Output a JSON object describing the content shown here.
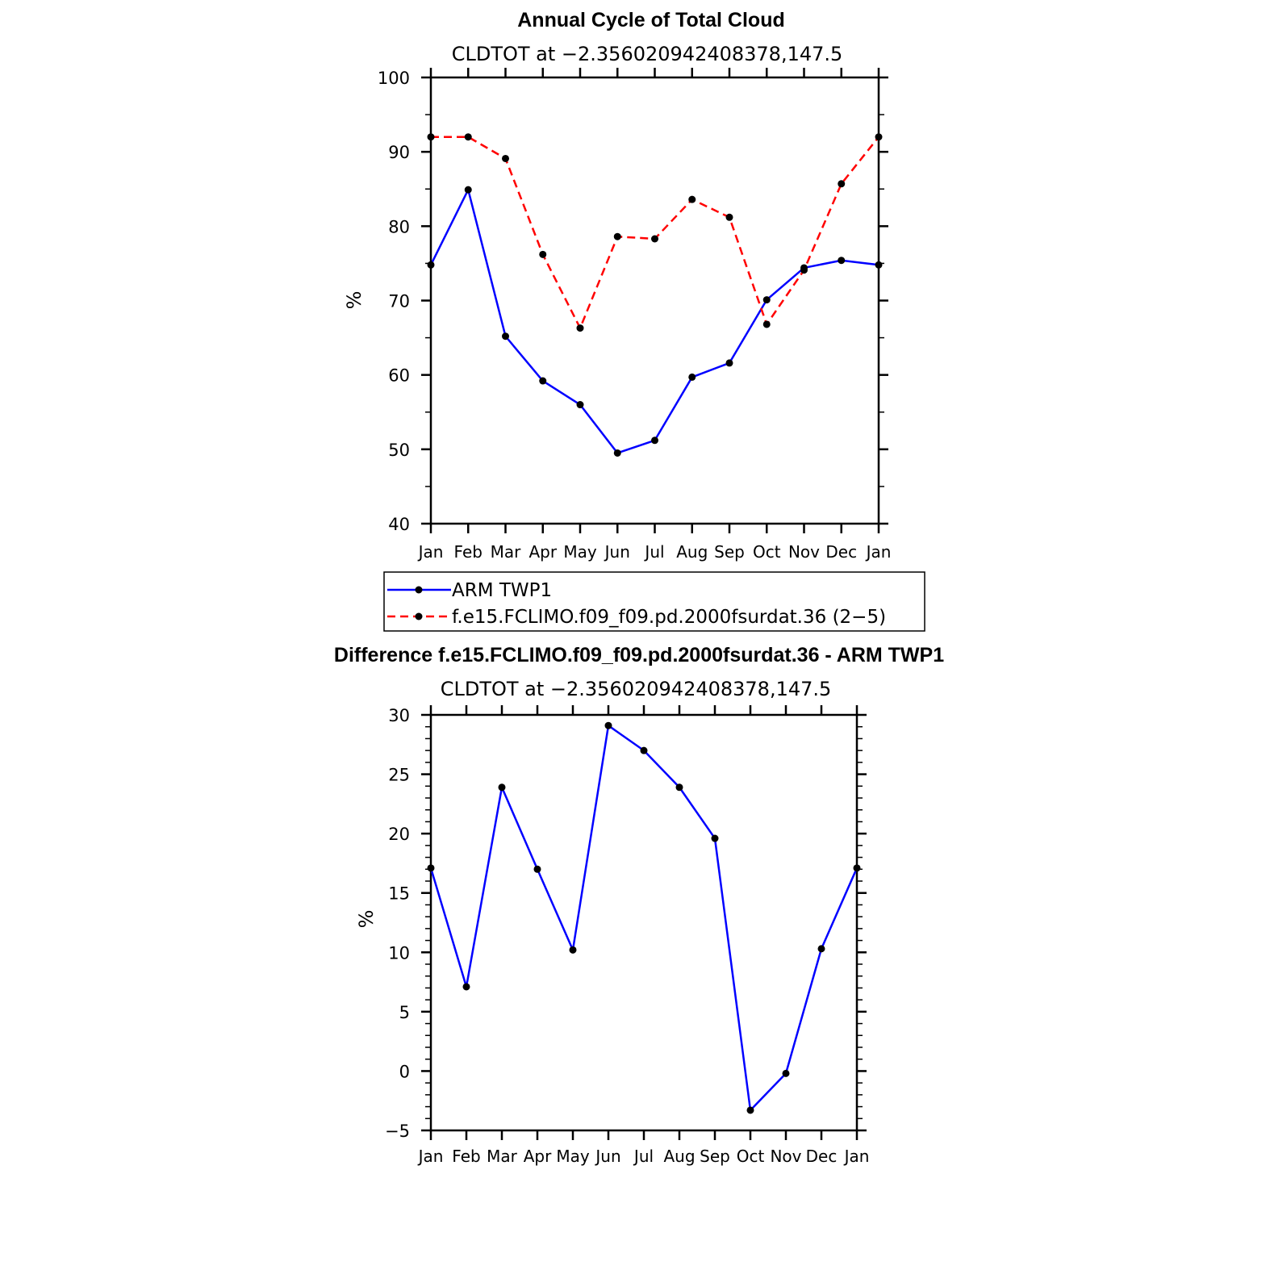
{
  "chart_data": [
    {
      "type": "line",
      "title": "Annual Cycle of Total Cloud",
      "subtitle": "CLDTOT at −2.356020942408378,147.5",
      "ylabel": "%",
      "xlabel": "",
      "categories": [
        "Jan",
        "Feb",
        "Mar",
        "Apr",
        "May",
        "Jun",
        "Jul",
        "Aug",
        "Sep",
        "Oct",
        "Nov",
        "Dec",
        "Jan"
      ],
      "ylim": [
        40,
        100
      ],
      "yticks": [
        40,
        50,
        60,
        70,
        80,
        90,
        100
      ],
      "series": [
        {
          "name": "ARM TWP1",
          "color": "#0000ff",
          "dash": "solid",
          "values": [
            74.8,
            84.9,
            65.2,
            59.2,
            56.0,
            49.5,
            51.2,
            59.7,
            61.6,
            70.1,
            74.4,
            75.4,
            74.8
          ]
        },
        {
          "name": "f.e15.FCLIMO.f09_f09.pd.2000fsurdat.36 (2−5)",
          "color": "#ff0000",
          "dash": "dashed",
          "values": [
            92.0,
            92.0,
            89.1,
            76.2,
            66.3,
            78.6,
            78.3,
            83.6,
            81.2,
            66.8,
            74.1,
            85.7,
            92.0
          ]
        }
      ],
      "legend": "below"
    },
    {
      "type": "line",
      "title": "Difference f.e15.FCLIMO.f09_f09.pd.2000fsurdat.36 - ARM TWP1",
      "subtitle": "CLDTOT at −2.356020942408378,147.5",
      "ylabel": "%",
      "xlabel": "",
      "categories": [
        "Jan",
        "Feb",
        "Mar",
        "Apr",
        "May",
        "Jun",
        "Jul",
        "Aug",
        "Sep",
        "Oct",
        "Nov",
        "Dec",
        "Jan"
      ],
      "ylim": [
        -5,
        30
      ],
      "yticks": [
        -5,
        0,
        5,
        10,
        15,
        20,
        25,
        30
      ],
      "ytick_labels": [
        "−5",
        "0",
        "5",
        "10",
        "15",
        "20",
        "25",
        "30"
      ],
      "series": [
        {
          "name": "Difference",
          "color": "#0000ff",
          "dash": "solid",
          "values": [
            17.1,
            7.1,
            23.9,
            17.0,
            10.2,
            29.1,
            27.0,
            23.9,
            19.6,
            -3.3,
            -0.2,
            10.3,
            17.1
          ]
        }
      ],
      "legend": "none"
    }
  ]
}
